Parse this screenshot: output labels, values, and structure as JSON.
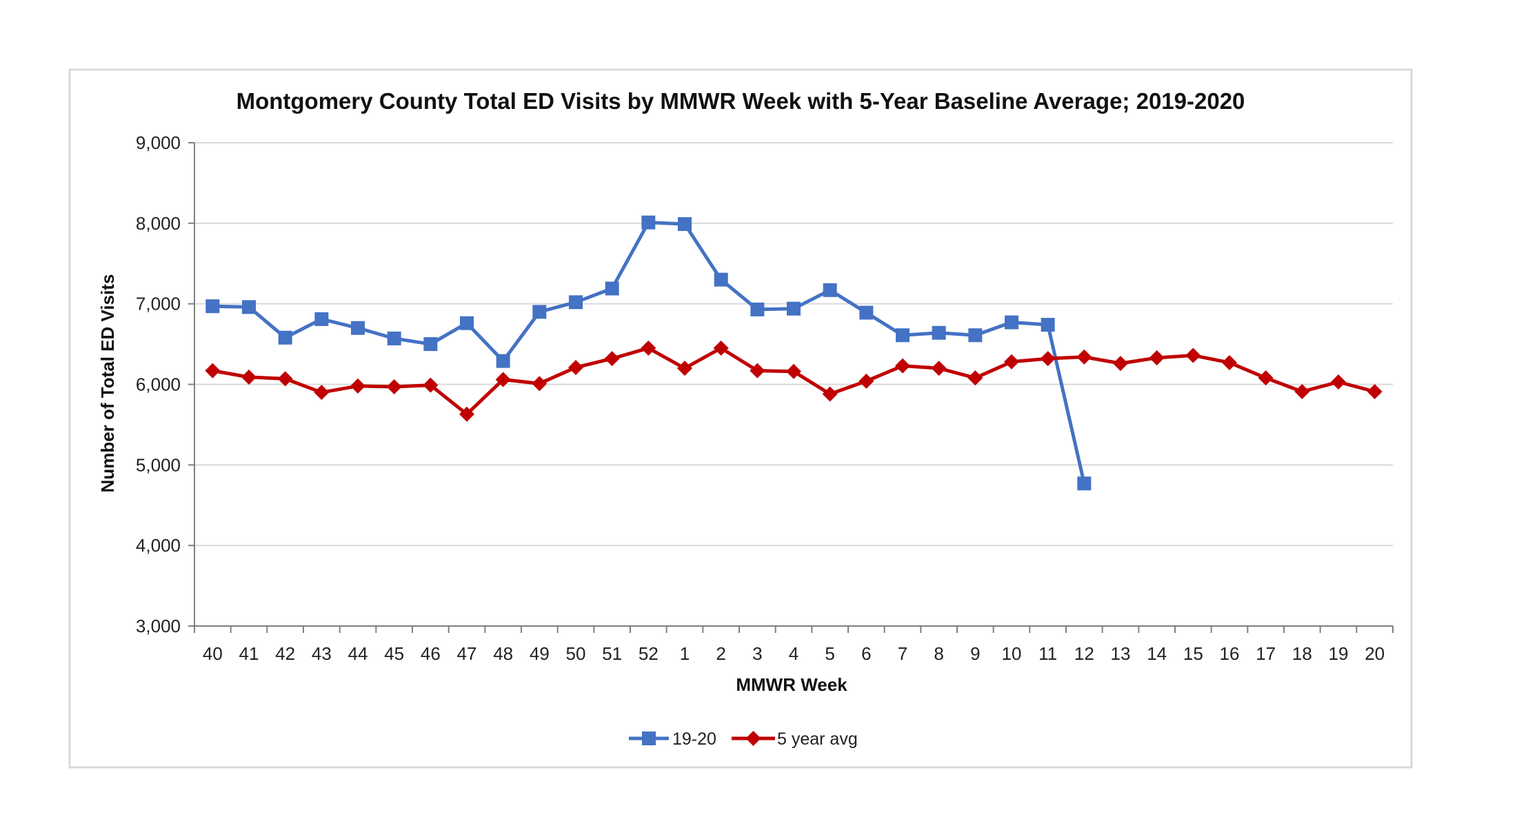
{
  "colors": {
    "series_1": "#4472C4",
    "series_2": "#C00000",
    "grid": "#d9d9d9",
    "axis": "#7f7f7f",
    "frame": "#d9d9d9"
  },
  "chart_data": {
    "type": "line",
    "title": "Montgomery County Total ED Visits by MMWR Week with 5-Year Baseline Average; 2019-2020",
    "xlabel": "MMWR Week",
    "ylabel": "Number of Total ED Visits",
    "categories": [
      "40",
      "41",
      "42",
      "43",
      "44",
      "45",
      "46",
      "47",
      "48",
      "49",
      "50",
      "51",
      "52",
      "1",
      "2",
      "3",
      "4",
      "5",
      "6",
      "7",
      "8",
      "9",
      "10",
      "11",
      "12",
      "13",
      "14",
      "15",
      "16",
      "17",
      "18",
      "19",
      "20"
    ],
    "ylim": [
      3000,
      9000
    ],
    "yticks": [
      3000,
      4000,
      5000,
      6000,
      7000,
      8000,
      9000
    ],
    "ytick_labels": [
      "3,000",
      "4,000",
      "5,000",
      "6,000",
      "7,000",
      "8,000",
      "9,000"
    ],
    "grid": true,
    "legend_position": "bottom",
    "series": [
      {
        "name": "19-20",
        "marker": "square",
        "values": [
          6970,
          6960,
          6580,
          6810,
          6700,
          6570,
          6500,
          6760,
          6290,
          6900,
          7020,
          7190,
          8010,
          7990,
          7300,
          6930,
          6940,
          7170,
          6890,
          6610,
          6640,
          6610,
          6770,
          6740,
          4770,
          null,
          null,
          null,
          null,
          null,
          null,
          null,
          null
        ]
      },
      {
        "name": "5 year avg",
        "marker": "diamond",
        "values": [
          6170,
          6090,
          6070,
          5900,
          5980,
          5970,
          5990,
          5630,
          6060,
          6010,
          6210,
          6320,
          6450,
          6200,
          6450,
          6170,
          6160,
          5880,
          6040,
          6230,
          6200,
          6080,
          6280,
          6320,
          6340,
          6260,
          6330,
          6360,
          6270,
          6080,
          5910,
          6030,
          5910
        ]
      }
    ]
  }
}
